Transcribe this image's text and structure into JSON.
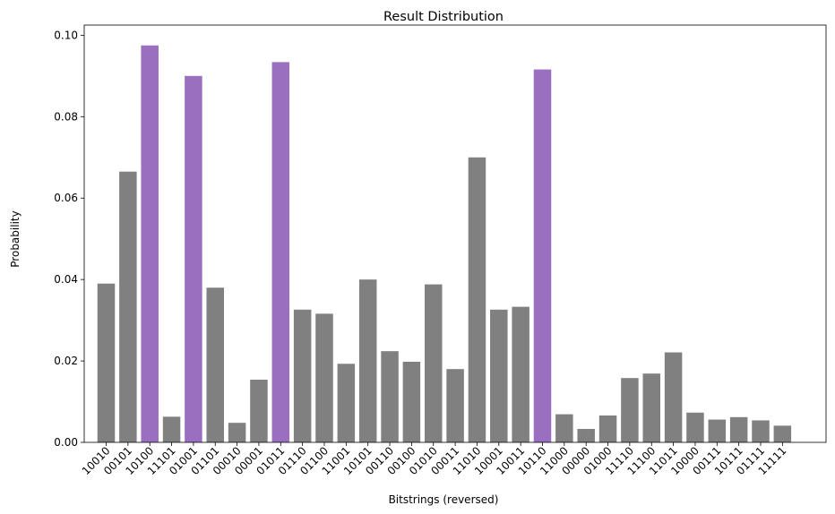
{
  "chart_data": {
    "type": "bar",
    "title": "Result Distribution",
    "xlabel": "Bitstrings (reversed)",
    "ylabel": "Probability",
    "ylim": [
      0,
      0.1025
    ],
    "yticks": [
      "0.00",
      "0.02",
      "0.04",
      "0.06",
      "0.08",
      "0.10"
    ],
    "ytick_values": [
      0,
      0.02,
      0.04,
      0.06,
      0.08,
      0.1
    ],
    "grid": false,
    "colors": {
      "default": "#808080",
      "highlight": "#9a6fbf"
    },
    "categories": [
      "10010",
      "00101",
      "10100",
      "11101",
      "01001",
      "01101",
      "00010",
      "00001",
      "01011",
      "01110",
      "01100",
      "11001",
      "10101",
      "00110",
      "00100",
      "01010",
      "00011",
      "11010",
      "10001",
      "10011",
      "10110",
      "11000",
      "00000",
      "01000",
      "11110",
      "11100",
      "11011",
      "10000",
      "00111",
      "10111",
      "01111",
      "11111"
    ],
    "values": [
      0.039,
      0.0665,
      0.0975,
      0.0063,
      0.09,
      0.038,
      0.0048,
      0.0154,
      0.0934,
      0.0326,
      0.0316,
      0.0193,
      0.04,
      0.0224,
      0.0198,
      0.0388,
      0.018,
      0.07,
      0.0326,
      0.0333,
      0.0916,
      0.0069,
      0.0033,
      0.0066,
      0.0158,
      0.0169,
      0.0221,
      0.0073,
      0.0056,
      0.0062,
      0.0054,
      0.0041
    ],
    "highlighted": [
      false,
      false,
      true,
      false,
      true,
      false,
      false,
      false,
      true,
      false,
      false,
      false,
      false,
      false,
      false,
      false,
      false,
      false,
      false,
      false,
      true,
      false,
      false,
      false,
      false,
      false,
      false,
      false,
      false,
      false,
      false,
      false
    ]
  }
}
